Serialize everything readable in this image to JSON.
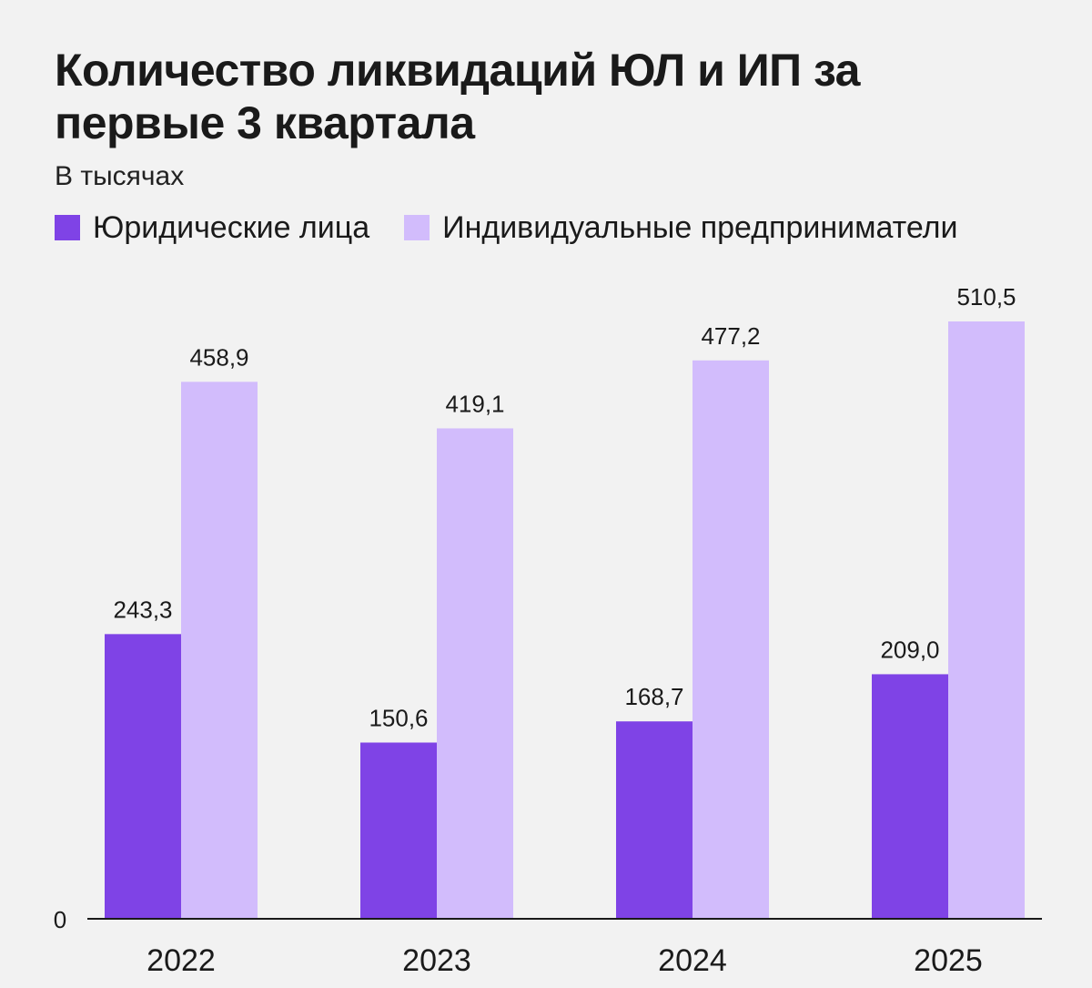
{
  "chart_data": {
    "type": "bar",
    "title": "Количество ликвидаций ЮЛ и ИП за первые 3 квартала",
    "subtitle": "В тысячах",
    "categories": [
      "2022",
      "2023",
      "2024",
      "2025"
    ],
    "series": [
      {
        "name": "Юридические лица",
        "color": "#7f43e6",
        "values": [
          243.3,
          150.6,
          168.7,
          209.0
        ],
        "labels": [
          "243,3",
          "150,6",
          "168,7",
          "209,0"
        ]
      },
      {
        "name": "Индивидуальные предприниматели",
        "color": "#d2bcfc",
        "values": [
          458.9,
          419.1,
          477.2,
          510.5
        ],
        "labels": [
          "458,9",
          "419,1",
          "477,2",
          "510,5"
        ]
      }
    ],
    "y_zero_label": "0",
    "ylim": [
      0,
      510.5
    ],
    "grid": false,
    "legend_position": "top-left"
  }
}
